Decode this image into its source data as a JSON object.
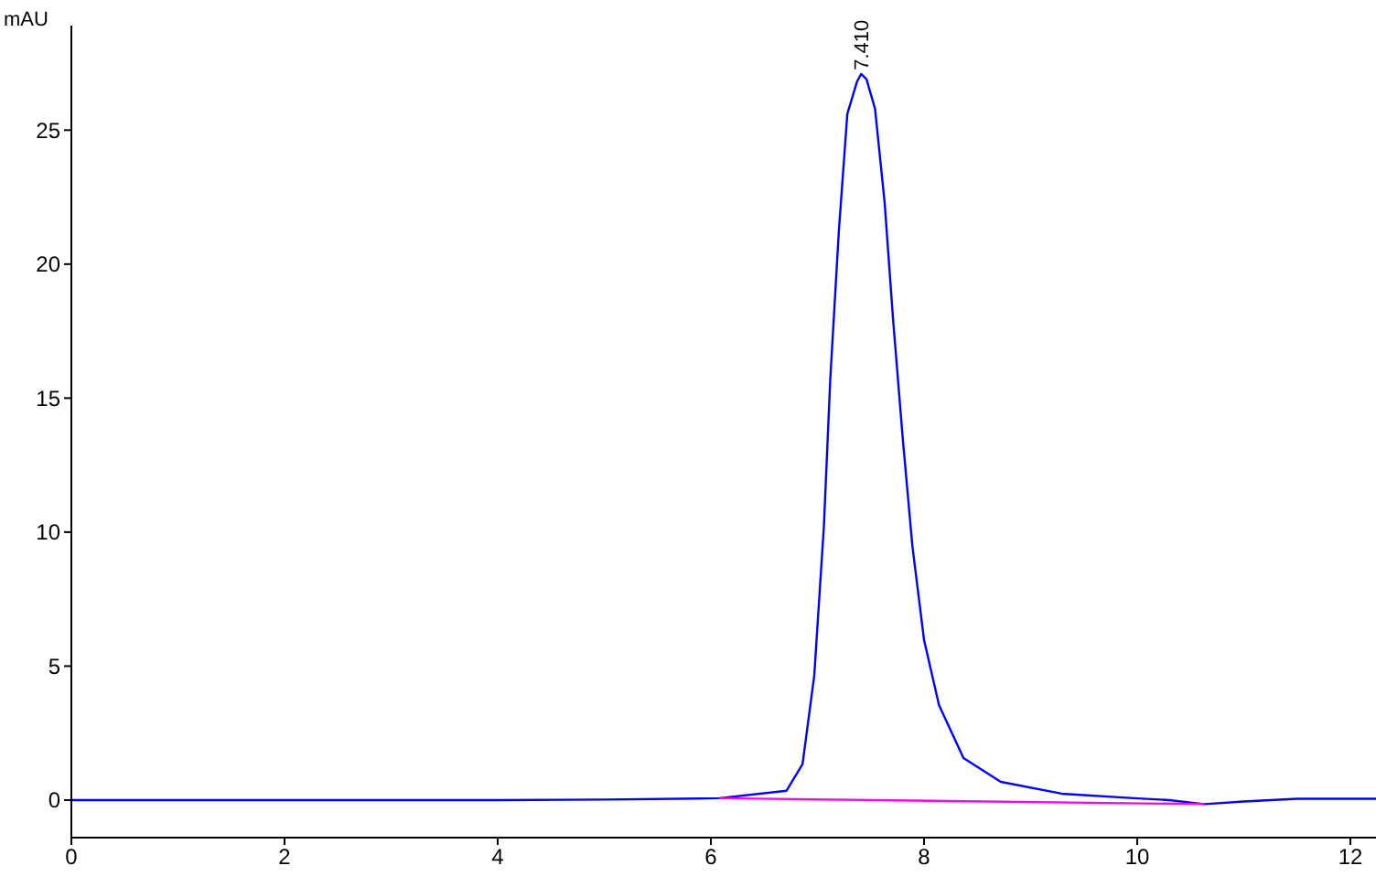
{
  "chart_data": {
    "type": "line",
    "ylabel": "mAU",
    "xlim": [
      0,
      12.24
    ],
    "ylim": [
      -1.4,
      28.9
    ],
    "xticks": [
      0,
      2,
      4,
      6,
      8,
      10,
      12
    ],
    "yticks": [
      0,
      5,
      10,
      15,
      20,
      25
    ],
    "annotations": [
      {
        "text": "7.410",
        "x": 7.41,
        "y": 27.1
      }
    ],
    "series": [
      {
        "color": "#0000ff",
        "x": [
          0,
          2,
          4,
          5,
          6.08,
          6.71,
          6.86,
          6.97,
          7.06,
          7.12,
          7.2,
          7.28,
          7.37,
          7.41,
          7.46,
          7.54,
          7.63,
          7.71,
          7.8,
          7.89,
          8,
          8.14,
          8.37,
          8.72,
          9.29,
          9.97,
          10.3,
          10.63,
          11,
          11.5,
          12.24
        ],
        "values": [
          0,
          0,
          0,
          0.02,
          0.07,
          0.35,
          1.34,
          4.65,
          10.2,
          15.7,
          21.2,
          25.6,
          26.8,
          27.1,
          26.9,
          25.8,
          22.3,
          17.9,
          13.5,
          9.5,
          5.97,
          3.55,
          1.57,
          0.68,
          0.24,
          0.07,
          0,
          -0.15,
          -0.05,
          0.05,
          0.05
        ]
      },
      {
        "color": "#ff00ff",
        "x": [
          6.08,
          10.63
        ],
        "values": [
          0.07,
          -0.15
        ]
      }
    ]
  }
}
